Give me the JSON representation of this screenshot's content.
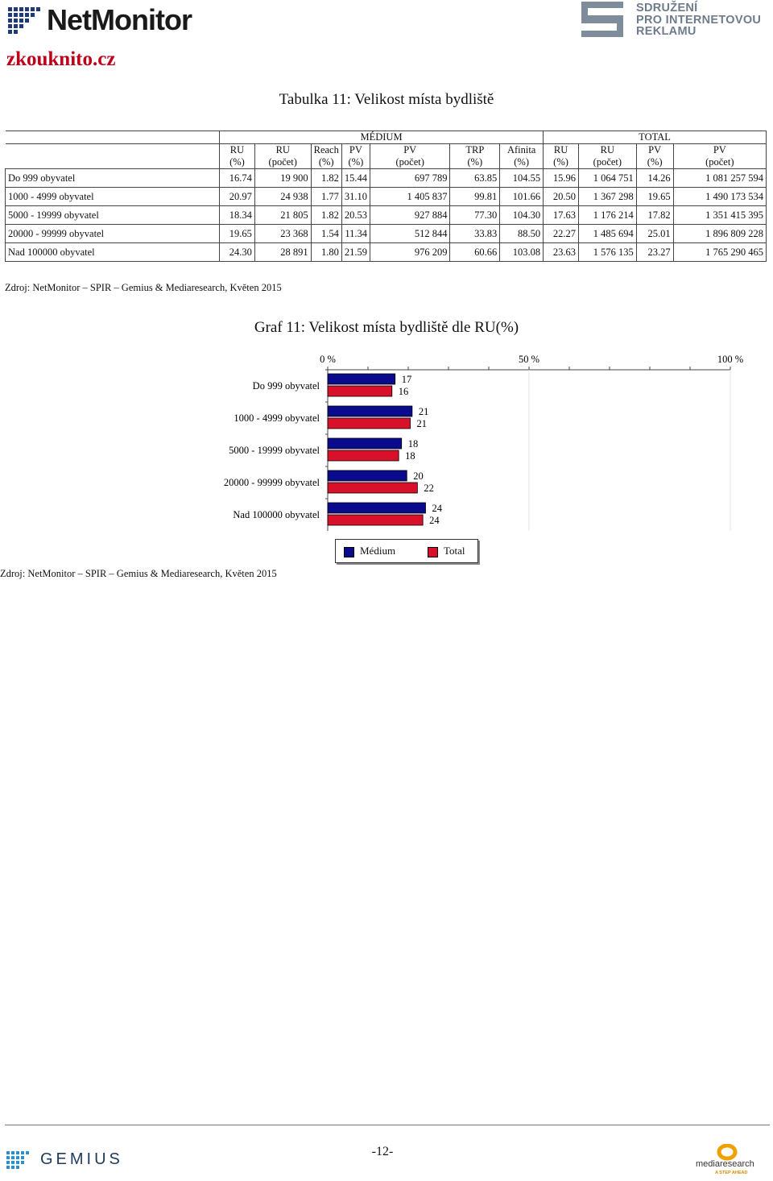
{
  "header": {
    "left_logo_text": "NetMonitor",
    "right_logo_lines": [
      "SDRUŽENÍ",
      "PRO INTERNETOVOU",
      "REKLAMU"
    ],
    "site_name": "zkouknito.cz"
  },
  "table": {
    "title": "Tabulka 11: Velikost místa bydliště",
    "group_headers": [
      "MÉDIUM",
      "TOTAL"
    ],
    "columns": [
      [
        "RU",
        "(%)"
      ],
      [
        "RU",
        "(počet)"
      ],
      [
        "Reach",
        "(%)"
      ],
      [
        "PV",
        "(%)"
      ],
      [
        "PV",
        "(počet)"
      ],
      [
        "TRP",
        "(%)"
      ],
      [
        "Afinita",
        "(%)"
      ],
      [
        "RU",
        "(%)"
      ],
      [
        "RU",
        "(počet)"
      ],
      [
        "PV",
        "(%)"
      ],
      [
        "PV",
        "(počet)"
      ]
    ],
    "rows": [
      [
        "Do 999 obyvatel",
        "16.74",
        "19 900",
        "1.82",
        "15.44",
        "697 789",
        "63.85",
        "104.55",
        "15.96",
        "1 064 751",
        "14.26",
        "1 081 257 594"
      ],
      [
        "1000 - 4999 obyvatel",
        "20.97",
        "24 938",
        "1.77",
        "31.10",
        "1 405 837",
        "99.81",
        "101.66",
        "20.50",
        "1 367 298",
        "19.65",
        "1 490 173 534"
      ],
      [
        "5000 - 19999 obyvatel",
        "18.34",
        "21 805",
        "1.82",
        "20.53",
        "927 884",
        "77.30",
        "104.30",
        "17.63",
        "1 176 214",
        "17.82",
        "1 351 415 395"
      ],
      [
        "20000 - 99999 obyvatel",
        "19.65",
        "23 368",
        "1.54",
        "11.34",
        "512 844",
        "33.83",
        "88.50",
        "22.27",
        "1 485 694",
        "25.01",
        "1 896 809 228"
      ],
      [
        "Nad 100000 obyvatel",
        "24.30",
        "28 891",
        "1.80",
        "21.59",
        "976 209",
        "60.66",
        "103.08",
        "23.63",
        "1 576 135",
        "23.27",
        "1 765 290 465"
      ]
    ],
    "source": "Zdroj: NetMonitor – SPIR – Gemius & Mediaresearch, Květen 2015"
  },
  "chart_title": "Graf 11: Velikost místa bydliště dle RU(%)",
  "chart_data": {
    "type": "bar",
    "orientation": "horizontal",
    "categories": [
      "Do 999 obyvatel",
      "1000 - 4999 obyvatel",
      "5000 - 19999 obyvatel",
      "20000 - 99999 obyvatel",
      "Nad 100000 obyvatel"
    ],
    "series": [
      {
        "name": "Médium",
        "values": [
          16.74,
          20.97,
          18.34,
          19.65,
          24.3
        ],
        "labels": [
          "17",
          "21",
          "18",
          "20",
          "24"
        ],
        "color": "#0a0a8c"
      },
      {
        "name": "Total",
        "values": [
          15.96,
          20.5,
          17.63,
          22.27,
          23.63
        ],
        "labels": [
          "16",
          "21",
          "18",
          "22",
          "24"
        ],
        "color": "#d8102a"
      }
    ],
    "tick_labels": [
      "0 %",
      "50 %",
      "100 %"
    ],
    "xlim": [
      0,
      100
    ],
    "grid": true,
    "legend": "bottom",
    "source": "Zdroj: NetMonitor – SPIR – Gemius & Mediaresearch, Květen 2015"
  },
  "footer": {
    "left_logo_text": "GEMIUS",
    "page_number": "-12-",
    "right_logo_text": "mediaresearch",
    "right_logo_tagline": "A STEP AHEAD"
  }
}
